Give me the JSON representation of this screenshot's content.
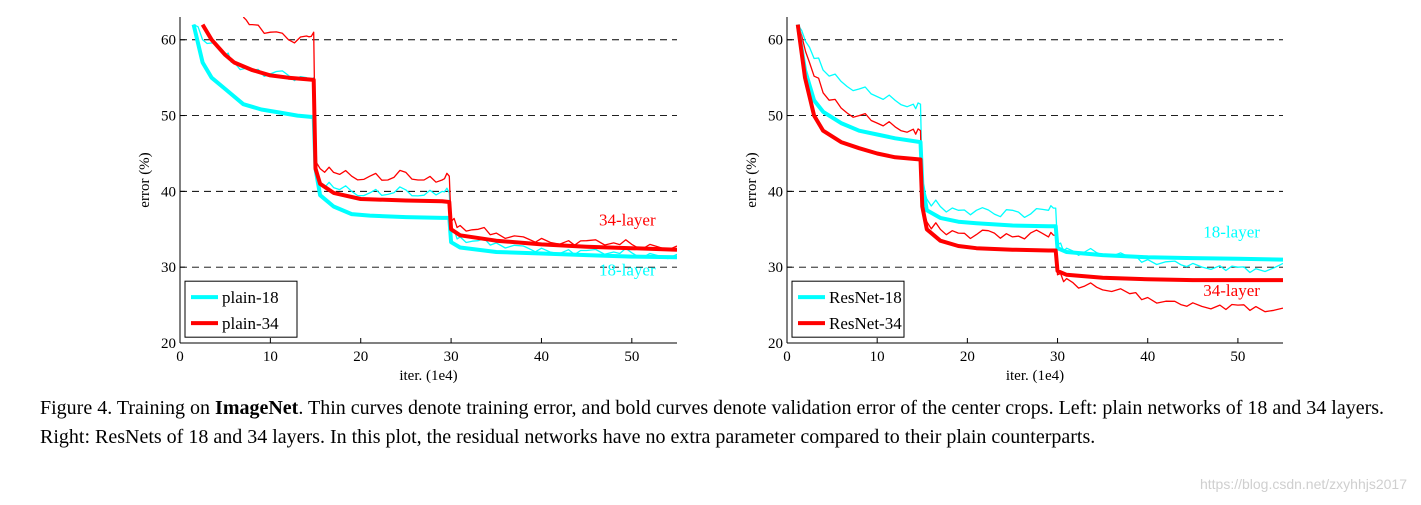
{
  "caption": {
    "prefix": "Figure 4. Training on ",
    "bold": "ImageNet",
    "rest": ". Thin curves denote training error, and bold curves denote validation error of the center crops. Left: plain networks of 18 and 34 layers. Right: ResNets of 18 and 34 layers. In this plot, the residual networks have no extra parameter compared to their plain counterparts."
  },
  "watermark": "https://blog.csdn.net/zxyhhjs2017",
  "colors": {
    "layer18": "#00ffff",
    "layer34": "#ff0000"
  },
  "chart_data": [
    {
      "type": "line",
      "xlabel": "iter. (1e4)",
      "ylabel": "error (%)",
      "xlim": [
        0,
        55
      ],
      "ylim": [
        20,
        63
      ],
      "xticks": [
        0,
        10,
        20,
        30,
        40,
        50
      ],
      "yticks": [
        20,
        30,
        40,
        50,
        60
      ],
      "grid": "dashed horizontal at 30, 40, 50, 60",
      "legend": {
        "placement": "bottom-left",
        "entries": [
          "plain-18",
          "plain-34"
        ]
      },
      "annotations": [
        {
          "text": "34-layer",
          "x": 49.5,
          "y": 35.5,
          "color": "#ff0000"
        },
        {
          "text": "18-layer",
          "x": 49.5,
          "y": 28.9,
          "color": "#00ffff"
        }
      ],
      "series": [
        {
          "name": "plain-18",
          "kind": "validation",
          "color": "#00ffff",
          "x": [
            1.5,
            2.5,
            3.5,
            5,
            7,
            9,
            11,
            13,
            14.8,
            15.0,
            15.5,
            17,
            19,
            21,
            25,
            29,
            29.8,
            30.0,
            31,
            35,
            40,
            45,
            50,
            55
          ],
          "y": [
            62,
            57,
            55,
            53.5,
            51.5,
            50.8,
            50.4,
            50,
            49.8,
            43,
            39.5,
            38,
            37,
            36.8,
            36.6,
            36.5,
            36.5,
            33.3,
            32.6,
            32,
            31.8,
            31.6,
            31.4,
            31.3
          ]
        },
        {
          "name": "plain-34",
          "kind": "validation",
          "color": "#ff0000",
          "x": [
            2.5,
            3.5,
            5,
            6,
            8,
            10,
            12,
            14,
            14.8,
            15.0,
            15.5,
            17,
            20,
            25,
            29,
            29.8,
            30.0,
            31,
            35,
            40,
            45,
            50,
            55
          ],
          "y": [
            62,
            60,
            58,
            57,
            56,
            55.3,
            55,
            54.8,
            54.7,
            43,
            41,
            39.8,
            39,
            38.8,
            38.7,
            38.6,
            35,
            34.2,
            33.5,
            33,
            32.7,
            32.5,
            32.3
          ]
        },
        {
          "name": "plain-18",
          "kind": "training",
          "color": "#00ffff",
          "x": [
            1.5,
            3,
            5,
            6,
            8,
            10,
            12,
            14,
            14.8,
            15.0,
            15.5,
            17,
            19,
            21,
            23,
            25,
            27,
            29,
            29.8,
            30.0,
            31,
            33,
            35,
            38,
            40,
            43,
            45,
            48,
            50,
            52,
            55
          ],
          "y": [
            62,
            59.5,
            58,
            57,
            56,
            55.5,
            55.3,
            55,
            55,
            43,
            41,
            40.5,
            40,
            39.8,
            39.6,
            40.2,
            39.5,
            40,
            39.8,
            34.5,
            34,
            33.5,
            33.2,
            32.8,
            32.5,
            32.3,
            32.2,
            32,
            31.9,
            31.8,
            31.7
          ]
        },
        {
          "name": "plain-34",
          "kind": "training",
          "color": "#ff0000",
          "x": [
            7,
            8,
            10,
            12,
            14,
            14.8,
            15.0,
            15.5,
            17,
            19,
            21,
            23,
            25,
            27,
            29,
            29.8,
            30.0,
            31,
            33,
            35,
            38,
            40,
            43,
            45,
            48,
            50,
            52,
            55
          ],
          "y": [
            63,
            62,
            61,
            60,
            60.5,
            61,
            44,
            43,
            42.5,
            42,
            42,
            41.5,
            42.5,
            41.5,
            41.5,
            42,
            36,
            35.5,
            35,
            34.5,
            34,
            33.8,
            33.5,
            33.5,
            33.2,
            33,
            33,
            32.8
          ]
        },
        {
          "name": "ResNet-18",
          "kind": "validation",
          "color": "#00ffff",
          "x": [
            1.2,
            2,
            3,
            4,
            6,
            8,
            10,
            12,
            14.8,
            15.0,
            15.5,
            17,
            19,
            21,
            25,
            29,
            29.8,
            30.0,
            31,
            35,
            40,
            45,
            50,
            55
          ],
          "y": [
            62,
            56,
            52,
            50.5,
            49,
            48,
            47.5,
            47,
            46.5,
            41,
            37.5,
            36.5,
            36,
            35.8,
            35.5,
            35.4,
            35.4,
            32.5,
            32,
            31.6,
            31.3,
            31.2,
            31.1,
            31.0
          ]
        },
        {
          "name": "ResNet-34",
          "kind": "validation",
          "color": "#ff0000",
          "x": [
            1.2,
            2,
            3,
            4,
            6,
            8,
            10,
            12,
            14.8,
            15.0,
            15.5,
            17,
            19,
            21,
            25,
            29,
            29.8,
            30.0,
            31,
            35,
            40,
            45,
            50,
            55
          ],
          "y": [
            62,
            55,
            50,
            48,
            46.5,
            45.7,
            45,
            44.5,
            44.2,
            38,
            35,
            33.5,
            32.8,
            32.5,
            32.3,
            32.2,
            32.2,
            29.5,
            29,
            28.6,
            28.4,
            28.3,
            28.3,
            28.3
          ]
        },
        {
          "name": "ResNet-18",
          "kind": "training",
          "color": "#00ffff",
          "x": [
            1.2,
            2.5,
            4,
            6,
            8,
            10,
            12,
            14,
            14.8,
            15.0,
            15.5,
            17,
            19,
            21,
            23,
            25,
            27,
            29,
            29.8,
            30.0,
            31,
            33,
            35,
            38,
            40,
            43,
            45,
            48,
            50,
            52,
            55
          ],
          "y": [
            62,
            59,
            56,
            54.5,
            53.5,
            52.5,
            52,
            51.5,
            51.5,
            41,
            39,
            38,
            37.5,
            37.5,
            37,
            37.5,
            37,
            37.5,
            37.8,
            33,
            32.5,
            32,
            31.6,
            31.3,
            31,
            30.8,
            30.5,
            30.2,
            30,
            29.8,
            30.5
          ]
        },
        {
          "name": "ResNet-34",
          "kind": "training",
          "color": "#ff0000",
          "x": [
            1.2,
            2.5,
            4,
            6,
            8,
            10,
            12,
            14,
            14.8,
            15.0,
            15.5,
            17,
            19,
            21,
            23,
            25,
            27,
            29,
            29.8,
            30.0,
            31,
            33,
            35,
            38,
            40,
            43,
            45,
            48,
            50,
            52,
            55
          ],
          "y": [
            62,
            57,
            53,
            51,
            50,
            49,
            48.5,
            48.2,
            48,
            38,
            36,
            35,
            34.5,
            34.3,
            34.5,
            34,
            34.5,
            34,
            34.2,
            29,
            28.5,
            27.5,
            27,
            26.5,
            26,
            25.5,
            25.3,
            25,
            25,
            24.8,
            24.6
          ]
        }
      ]
    },
    {
      "type": "line",
      "xlabel": "iter. (1e4)",
      "ylabel": "error (%)",
      "xlim": [
        0,
        55
      ],
      "ylim": [
        20,
        63
      ],
      "xticks": [
        0,
        10,
        20,
        30,
        40,
        50
      ],
      "yticks": [
        20,
        30,
        40,
        50,
        60
      ],
      "grid": "dashed horizontal at 30, 40, 50, 60",
      "legend": {
        "placement": "bottom-left",
        "entries": [
          "ResNet-18",
          "ResNet-34"
        ]
      },
      "annotations": [
        {
          "text": "18-layer",
          "x": 49.3,
          "y": 33.9,
          "color": "#00ffff"
        },
        {
          "text": "34-layer",
          "x": 49.3,
          "y": 26.2,
          "color": "#ff0000"
        }
      ]
    }
  ]
}
